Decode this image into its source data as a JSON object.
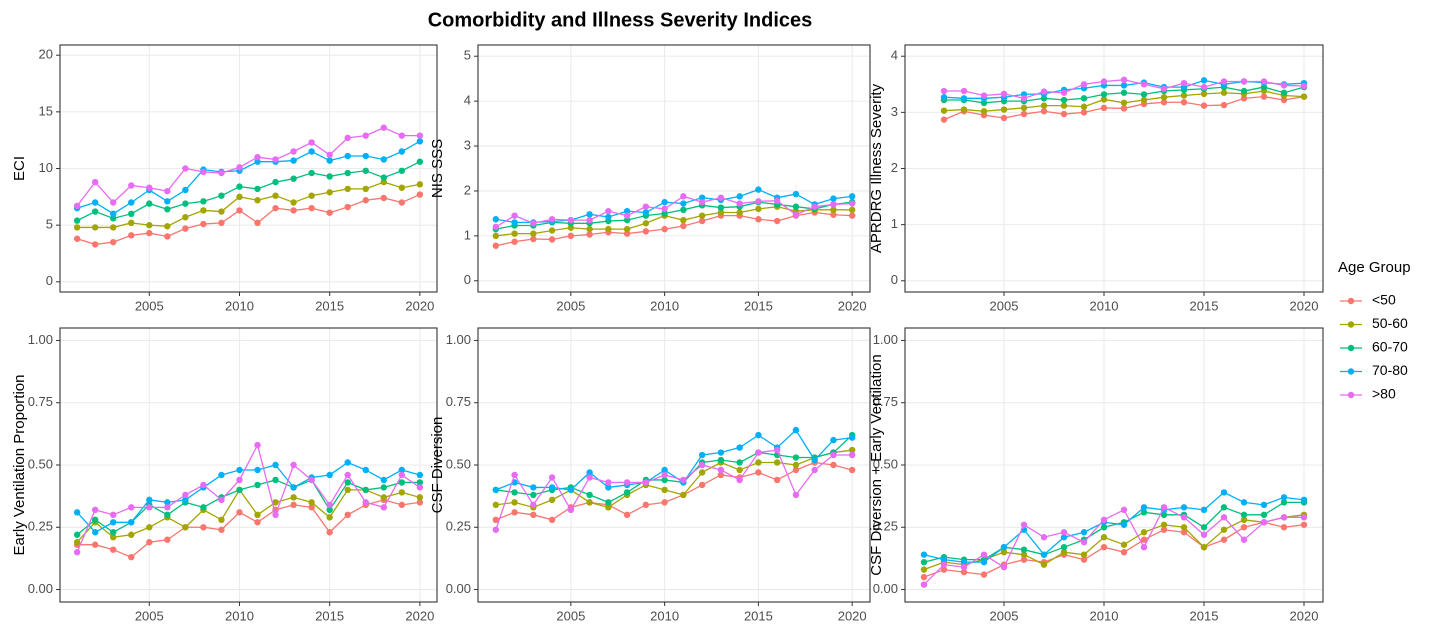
{
  "title": "Comorbidity and Illness Severity Indices",
  "legend_title": "Age Group",
  "chart_data": [
    {
      "type": "line",
      "ylabel": "ECI",
      "x": [
        2001,
        2002,
        2003,
        2004,
        2005,
        2006,
        2007,
        2008,
        2009,
        2010,
        2011,
        2012,
        2013,
        2014,
        2015,
        2016,
        2017,
        2018,
        2019,
        2020
      ],
      "xlim": [
        2000.05,
        2020.95
      ],
      "xticks": [
        2005,
        2010,
        2015,
        2020
      ],
      "ylim": [
        -0.9,
        20.9
      ],
      "yticks": [
        0,
        5,
        10,
        15,
        20
      ],
      "grid": true,
      "series": [
        {
          "name": "<50",
          "color": "#F8766D",
          "values": [
            3.8,
            3.3,
            3.5,
            4.1,
            4.3,
            4.0,
            4.7,
            5.1,
            5.2,
            6.3,
            5.2,
            6.5,
            6.3,
            6.5,
            6.1,
            6.6,
            7.2,
            7.4,
            7.0,
            7.7
          ]
        },
        {
          "name": "50-60",
          "color": "#A3A500",
          "values": [
            4.8,
            4.8,
            4.8,
            5.2,
            5.0,
            4.9,
            5.7,
            6.3,
            6.2,
            7.5,
            7.2,
            7.6,
            7.0,
            7.6,
            7.9,
            8.2,
            8.2,
            8.8,
            8.3,
            8.6
          ]
        },
        {
          "name": "60-70",
          "color": "#00BF7D",
          "values": [
            5.4,
            6.2,
            5.6,
            6.0,
            6.9,
            6.4,
            6.9,
            7.1,
            7.6,
            8.4,
            8.2,
            8.8,
            9.1,
            9.6,
            9.3,
            9.6,
            9.8,
            9.2,
            9.8,
            10.6
          ]
        },
        {
          "name": "70-80",
          "color": "#00B0F6",
          "values": [
            6.5,
            7.0,
            6.0,
            7.0,
            8.1,
            7.1,
            8.1,
            9.9,
            9.7,
            9.8,
            10.6,
            10.6,
            10.7,
            11.5,
            10.7,
            11.1,
            11.1,
            10.8,
            11.5,
            12.4
          ]
        },
        {
          "name": ">80",
          "color": "#E76BF3",
          "values": [
            6.7,
            8.8,
            7.0,
            8.5,
            8.3,
            8.0,
            10.0,
            9.7,
            9.6,
            10.1,
            11.0,
            10.8,
            11.5,
            12.3,
            11.2,
            12.7,
            12.9,
            13.6,
            12.9,
            12.9
          ]
        }
      ]
    },
    {
      "type": "line",
      "ylabel": "NIS SSS",
      "x": [
        2001,
        2002,
        2003,
        2004,
        2005,
        2006,
        2007,
        2008,
        2009,
        2010,
        2011,
        2012,
        2013,
        2014,
        2015,
        2016,
        2017,
        2018,
        2019,
        2020
      ],
      "xlim": [
        2000.05,
        2020.95
      ],
      "xticks": [
        2005,
        2010,
        2015,
        2020
      ],
      "ylim": [
        -0.25,
        5.25
      ],
      "yticks": [
        0,
        1,
        2,
        3,
        4,
        5
      ],
      "grid": true,
      "series": [
        {
          "name": "<50",
          "color": "#F8766D",
          "values": [
            0.78,
            0.87,
            0.93,
            0.92,
            1.0,
            1.03,
            1.08,
            1.05,
            1.1,
            1.15,
            1.22,
            1.33,
            1.45,
            1.45,
            1.37,
            1.33,
            1.45,
            1.52,
            1.47,
            1.45
          ]
        },
        {
          "name": "50-60",
          "color": "#A3A500",
          "values": [
            1.0,
            1.05,
            1.05,
            1.12,
            1.18,
            1.15,
            1.15,
            1.15,
            1.28,
            1.45,
            1.35,
            1.45,
            1.52,
            1.52,
            1.6,
            1.65,
            1.55,
            1.58,
            1.58,
            1.58
          ]
        },
        {
          "name": "60-70",
          "color": "#00BF7D",
          "values": [
            1.15,
            1.23,
            1.23,
            1.3,
            1.28,
            1.28,
            1.33,
            1.35,
            1.45,
            1.5,
            1.58,
            1.68,
            1.63,
            1.65,
            1.75,
            1.7,
            1.65,
            1.6,
            1.7,
            1.75
          ]
        },
        {
          "name": "70-80",
          "color": "#00B0F6",
          "values": [
            1.37,
            1.3,
            1.3,
            1.32,
            1.35,
            1.48,
            1.42,
            1.55,
            1.52,
            1.75,
            1.72,
            1.85,
            1.8,
            1.88,
            2.03,
            1.85,
            1.93,
            1.7,
            1.83,
            1.88
          ]
        },
        {
          "name": ">80",
          "color": "#E76BF3",
          "values": [
            1.2,
            1.45,
            1.28,
            1.37,
            1.35,
            1.35,
            1.55,
            1.45,
            1.65,
            1.6,
            1.88,
            1.75,
            1.85,
            1.72,
            1.77,
            1.78,
            1.47,
            1.65,
            1.7,
            1.72
          ]
        }
      ]
    },
    {
      "type": "line",
      "ylabel": "APRDRG Illness Severity",
      "x": [
        2002,
        2003,
        2004,
        2005,
        2006,
        2007,
        2008,
        2009,
        2010,
        2011,
        2012,
        2013,
        2014,
        2015,
        2016,
        2017,
        2018,
        2019,
        2020
      ],
      "xlim": [
        2000.05,
        2020.95
      ],
      "xticks": [
        2005,
        2010,
        2015,
        2020
      ],
      "ylim": [
        -0.2,
        4.2
      ],
      "yticks": [
        0,
        1,
        2,
        3,
        4
      ],
      "grid": true,
      "series": [
        {
          "name": "<50",
          "color": "#F8766D",
          "values": [
            2.87,
            3.02,
            2.95,
            2.9,
            2.97,
            3.02,
            2.97,
            3.0,
            3.08,
            3.07,
            3.15,
            3.18,
            3.18,
            3.12,
            3.13,
            3.25,
            3.28,
            3.22,
            3.28
          ]
        },
        {
          "name": "50-60",
          "color": "#A3A500",
          "values": [
            3.03,
            3.05,
            3.02,
            3.05,
            3.08,
            3.12,
            3.12,
            3.1,
            3.23,
            3.17,
            3.22,
            3.27,
            3.3,
            3.33,
            3.35,
            3.33,
            3.38,
            3.3,
            3.28
          ]
        },
        {
          "name": "60-70",
          "color": "#00BF7D",
          "values": [
            3.22,
            3.22,
            3.17,
            3.2,
            3.2,
            3.25,
            3.22,
            3.25,
            3.32,
            3.35,
            3.32,
            3.38,
            3.4,
            3.42,
            3.45,
            3.38,
            3.45,
            3.35,
            3.45
          ]
        },
        {
          "name": "70-80",
          "color": "#00B0F6",
          "values": [
            3.27,
            3.25,
            3.25,
            3.27,
            3.32,
            3.33,
            3.4,
            3.43,
            3.48,
            3.48,
            3.53,
            3.45,
            3.45,
            3.57,
            3.5,
            3.55,
            3.53,
            3.5,
            3.52
          ]
        },
        {
          "name": ">80",
          "color": "#E76BF3",
          "values": [
            3.38,
            3.38,
            3.3,
            3.33,
            3.25,
            3.37,
            3.35,
            3.5,
            3.55,
            3.58,
            3.5,
            3.42,
            3.52,
            3.45,
            3.55,
            3.55,
            3.55,
            3.48,
            3.47
          ]
        }
      ]
    },
    {
      "type": "line",
      "ylabel": "Early Ventilation Proportion",
      "x": [
        2001,
        2002,
        2003,
        2004,
        2005,
        2006,
        2007,
        2008,
        2009,
        2010,
        2011,
        2012,
        2013,
        2014,
        2015,
        2016,
        2017,
        2018,
        2019,
        2020
      ],
      "xlim": [
        2000.05,
        2020.95
      ],
      "xticks": [
        2005,
        2010,
        2015,
        2020
      ],
      "ylim": [
        -0.05,
        1.05
      ],
      "yticks": [
        {
          "value": 0,
          "label": "0.00"
        },
        0.25,
        {
          "value": 0.5,
          "label": "0.50"
        },
        0.75,
        {
          "value": 1,
          "label": "1.00"
        }
      ],
      "grid": true,
      "series": [
        {
          "name": "<50",
          "color": "#F8766D",
          "values": [
            0.18,
            0.18,
            0.16,
            0.13,
            0.19,
            0.2,
            0.25,
            0.25,
            0.24,
            0.31,
            0.27,
            0.32,
            0.34,
            0.33,
            0.23,
            0.3,
            0.34,
            0.36,
            0.34,
            0.35
          ]
        },
        {
          "name": "50-60",
          "color": "#A3A500",
          "values": [
            0.19,
            0.27,
            0.21,
            0.22,
            0.25,
            0.29,
            0.25,
            0.32,
            0.28,
            0.4,
            0.3,
            0.35,
            0.37,
            0.35,
            0.29,
            0.4,
            0.4,
            0.37,
            0.39,
            0.37
          ]
        },
        {
          "name": "60-70",
          "color": "#00BF7D",
          "values": [
            0.22,
            0.28,
            0.23,
            0.27,
            0.34,
            0.3,
            0.35,
            0.33,
            0.37,
            0.4,
            0.42,
            0.44,
            0.41,
            0.44,
            0.32,
            0.43,
            0.4,
            0.41,
            0.43,
            0.43
          ]
        },
        {
          "name": "70-80",
          "color": "#00B0F6",
          "values": [
            0.31,
            0.23,
            0.27,
            0.27,
            0.36,
            0.35,
            0.36,
            0.41,
            0.46,
            0.48,
            0.48,
            0.5,
            0.41,
            0.45,
            0.46,
            0.51,
            0.48,
            0.44,
            0.48,
            0.46
          ]
        },
        {
          "name": ">80",
          "color": "#E76BF3",
          "values": [
            0.15,
            0.32,
            0.3,
            0.33,
            0.33,
            0.33,
            0.38,
            0.42,
            0.36,
            0.44,
            0.58,
            0.3,
            0.5,
            0.44,
            0.34,
            0.46,
            0.35,
            0.33,
            0.46,
            0.41
          ]
        }
      ]
    },
    {
      "type": "line",
      "ylabel": "CSF Diversion",
      "x": [
        2001,
        2002,
        2003,
        2004,
        2005,
        2006,
        2007,
        2008,
        2009,
        2010,
        2011,
        2012,
        2013,
        2014,
        2015,
        2016,
        2017,
        2018,
        2019,
        2020
      ],
      "xlim": [
        2000.05,
        2020.95
      ],
      "xticks": [
        2005,
        2010,
        2015,
        2020
      ],
      "ylim": [
        -0.05,
        1.05
      ],
      "yticks": [
        {
          "value": 0,
          "label": "0.00"
        },
        0.25,
        {
          "value": 0.5,
          "label": "0.50"
        },
        0.75,
        {
          "value": 1,
          "label": "1.00"
        }
      ],
      "grid": true,
      "series": [
        {
          "name": "<50",
          "color": "#F8766D",
          "values": [
            0.28,
            0.31,
            0.3,
            0.28,
            0.33,
            0.35,
            0.34,
            0.3,
            0.34,
            0.35,
            0.38,
            0.42,
            0.46,
            0.45,
            0.47,
            0.44,
            0.48,
            0.51,
            0.5,
            0.48
          ]
        },
        {
          "name": "50-60",
          "color": "#A3A500",
          "values": [
            0.34,
            0.35,
            0.33,
            0.36,
            0.4,
            0.35,
            0.33,
            0.38,
            0.42,
            0.4,
            0.38,
            0.47,
            0.51,
            0.48,
            0.51,
            0.51,
            0.5,
            0.53,
            0.55,
            0.56
          ]
        },
        {
          "name": "60-70",
          "color": "#00BF7D",
          "values": [
            0.4,
            0.39,
            0.38,
            0.4,
            0.41,
            0.38,
            0.35,
            0.39,
            0.44,
            0.44,
            0.43,
            0.51,
            0.52,
            0.51,
            0.55,
            0.54,
            0.53,
            0.53,
            0.55,
            0.62
          ]
        },
        {
          "name": "70-80",
          "color": "#00B0F6",
          "values": [
            0.4,
            0.43,
            0.41,
            0.41,
            0.4,
            0.47,
            0.41,
            0.42,
            0.43,
            0.48,
            0.43,
            0.54,
            0.55,
            0.57,
            0.62,
            0.57,
            0.64,
            0.52,
            0.6,
            0.61
          ]
        },
        {
          "name": ">80",
          "color": "#E76BF3",
          "values": [
            0.24,
            0.46,
            0.34,
            0.45,
            0.32,
            0.45,
            0.43,
            0.43,
            0.43,
            0.46,
            0.44,
            0.5,
            0.48,
            0.44,
            0.55,
            0.56,
            0.38,
            0.48,
            0.54,
            0.54
          ]
        }
      ]
    },
    {
      "type": "line",
      "ylabel": "CSF Diversion + Early Ventilation",
      "x": [
        2001,
        2002,
        2003,
        2004,
        2005,
        2006,
        2007,
        2008,
        2009,
        2010,
        2011,
        2012,
        2013,
        2014,
        2015,
        2016,
        2017,
        2018,
        2019,
        2020
      ],
      "xlim": [
        2000.05,
        2020.95
      ],
      "xticks": [
        2005,
        2010,
        2015,
        2020
      ],
      "ylim": [
        -0.05,
        1.05
      ],
      "yticks": [
        {
          "value": 0,
          "label": "0.00"
        },
        0.25,
        {
          "value": 0.5,
          "label": "0.50"
        },
        0.75,
        {
          "value": 1,
          "label": "1.00"
        }
      ],
      "grid": true,
      "series": [
        {
          "name": "<50",
          "color": "#F8766D",
          "values": [
            0.05,
            0.08,
            0.07,
            0.06,
            0.1,
            0.12,
            0.11,
            0.14,
            0.12,
            0.17,
            0.15,
            0.2,
            0.24,
            0.23,
            0.17,
            0.2,
            0.25,
            0.27,
            0.25,
            0.26
          ]
        },
        {
          "name": "50-60",
          "color": "#A3A500",
          "values": [
            0.08,
            0.11,
            0.1,
            0.12,
            0.15,
            0.14,
            0.1,
            0.15,
            0.14,
            0.21,
            0.18,
            0.23,
            0.26,
            0.25,
            0.17,
            0.24,
            0.28,
            0.27,
            0.29,
            0.3
          ]
        },
        {
          "name": "60-70",
          "color": "#00BF7D",
          "values": [
            0.11,
            0.13,
            0.12,
            0.12,
            0.17,
            0.16,
            0.14,
            0.17,
            0.2,
            0.25,
            0.27,
            0.31,
            0.3,
            0.3,
            0.25,
            0.33,
            0.3,
            0.3,
            0.35,
            0.35
          ]
        },
        {
          "name": "70-80",
          "color": "#00B0F6",
          "values": [
            0.14,
            0.12,
            0.11,
            0.11,
            0.17,
            0.24,
            0.14,
            0.21,
            0.23,
            0.27,
            0.26,
            0.33,
            0.32,
            0.33,
            0.32,
            0.39,
            0.35,
            0.34,
            0.37,
            0.36
          ]
        },
        {
          "name": ">80",
          "color": "#E76BF3",
          "values": [
            0.02,
            0.1,
            0.09,
            0.14,
            0.09,
            0.26,
            0.21,
            0.23,
            0.19,
            0.28,
            0.32,
            0.17,
            0.33,
            0.29,
            0.22,
            0.29,
            0.2,
            0.27,
            0.29,
            0.29
          ]
        }
      ]
    }
  ]
}
